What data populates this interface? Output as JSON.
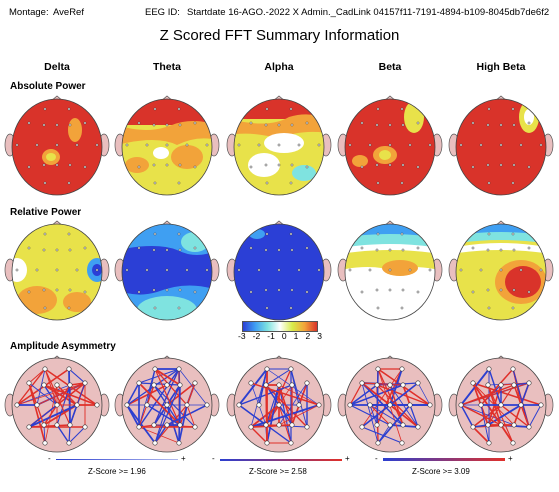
{
  "header": {
    "montage_label": "Montage:",
    "montage_value": "AveRef",
    "eeg_id_label": "EEG ID:",
    "eeg_id_value": "Startdate 16-AGO.-2022 X Admin._CadLink 04157f11-7191-4894-b109-8045db7de6f2"
  },
  "title": "Z Scored FFT Summary Information",
  "bands": [
    "Delta",
    "Theta",
    "Alpha",
    "Beta",
    "High Beta"
  ],
  "sections": {
    "absolute": "Absolute Power",
    "relative": "Relative Power",
    "asymmetry": "Amplitude Asymmetry"
  },
  "colorbar": {
    "ticks": [
      "-3",
      "-2",
      "-1",
      "0",
      "1",
      "2",
      "3"
    ],
    "colors": [
      "#2b3fd6",
      "#3f9ff2",
      "#7fe3e0",
      "#ffffff",
      "#d8ec4a",
      "#f2a33a",
      "#d9332a"
    ]
  },
  "zscore_scales": [
    {
      "minus": "-",
      "plus": "+",
      "label": "Z-Score >= 1.96"
    },
    {
      "minus": "-",
      "plus": "+",
      "label": "Z-Score >= 2.58"
    },
    {
      "minus": "-",
      "plus": "+",
      "label": "Z-Score >= 3.09"
    }
  ],
  "colors": {
    "red": "#d9332a",
    "orange": "#f2a33a",
    "yellow": "#e8e24a",
    "white": "#ffffff",
    "cyan": "#7fe3e0",
    "lightblue": "#3f9ff2",
    "blue": "#2b3fd6",
    "head_fill": "#e9bfbf",
    "ear": "#e9bfbf",
    "line_red": "#e0302a",
    "line_blue": "#2c3fd0"
  }
}
